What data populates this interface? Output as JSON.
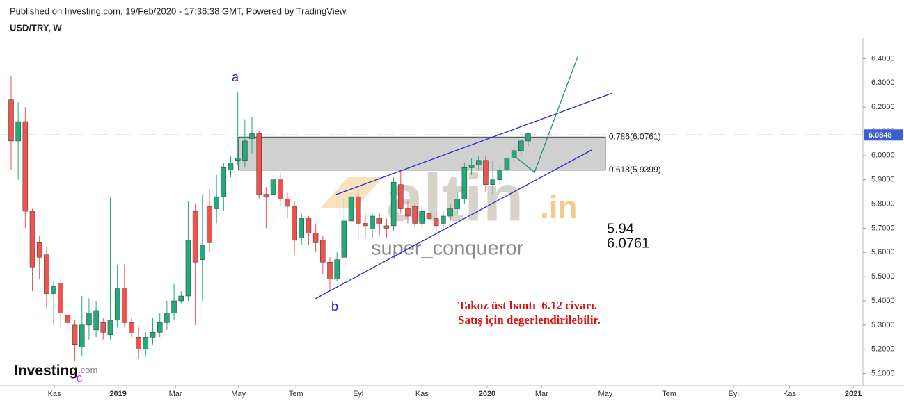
{
  "header": {
    "published": "Published on Investing.com, 19/Feb/2020 - 17:36:38 GMT, Powered by TradingView.",
    "symbol": "USD/TRY, W"
  },
  "chart_data": {
    "type": "candlestick",
    "categories": [
      null,
      null,
      null,
      null,
      null,
      null,
      null,
      null,
      null,
      null,
      null,
      null,
      null,
      null,
      null,
      null,
      null,
      null,
      null,
      null,
      null,
      null,
      null,
      null,
      null,
      null,
      null,
      null,
      null,
      null,
      null,
      null,
      null,
      null,
      null,
      null,
      null,
      null,
      null,
      null,
      null,
      null,
      null,
      null,
      null,
      null,
      null,
      null,
      null,
      null,
      null,
      null,
      null,
      null,
      null,
      null,
      null,
      null,
      null,
      null,
      null,
      null,
      null,
      null,
      null,
      null,
      null,
      null,
      null,
      null,
      null,
      null,
      null,
      null
    ],
    "open": [
      6.23,
      6.06,
      6.14,
      5.77,
      5.64,
      5.59,
      5.43,
      5.47,
      5.34,
      5.3,
      5.21,
      5.3,
      5.28,
      5.31,
      5.26,
      5.32,
      5.45,
      5.31,
      5.25,
      5.2,
      5.25,
      5.27,
      5.31,
      5.35,
      5.4,
      5.42,
      5.77,
      5.57,
      5.79,
      5.78,
      5.83,
      5.94,
      5.98,
      5.98,
      6.07,
      6.09,
      5.84,
      5.84,
      5.9,
      5.82,
      5.79,
      5.66,
      5.74,
      5.68,
      5.65,
      5.56,
      5.49,
      5.58,
      5.73,
      5.83,
      5.72,
      5.7,
      5.74,
      5.71,
      5.71,
      5.88,
      5.78,
      5.79,
      5.72,
      5.76,
      5.74,
      5.72,
      5.75,
      5.78,
      5.82,
      5.95,
      5.96,
      5.98,
      5.88,
      5.9,
      5.94,
      5.99,
      6.02,
      6.06
    ],
    "high": [
      6.33,
      6.22,
      6.2,
      5.78,
      5.67,
      5.62,
      5.48,
      5.49,
      5.36,
      5.32,
      5.42,
      5.41,
      5.4,
      5.33,
      5.83,
      5.55,
      5.55,
      5.33,
      5.29,
      5.27,
      5.33,
      5.35,
      5.4,
      5.47,
      5.44,
      5.81,
      5.8,
      5.84,
      5.86,
      5.92,
      5.97,
      6.0,
      6.26,
      6.15,
      6.16,
      6.1,
      5.87,
      5.93,
      5.93,
      5.85,
      5.81,
      5.76,
      5.75,
      5.72,
      5.67,
      5.58,
      5.6,
      5.82,
      5.85,
      5.86,
      5.76,
      5.76,
      5.76,
      5.74,
      5.91,
      5.94,
      5.81,
      5.8,
      5.79,
      5.79,
      5.77,
      5.77,
      5.8,
      5.85,
      5.97,
      5.99,
      6.0,
      6.0,
      5.98,
      5.96,
      6.01,
      6.05,
      6.08,
      6.09
    ],
    "low": [
      5.94,
      5.9,
      5.7,
      5.44,
      5.49,
      5.37,
      5.3,
      5.29,
      5.27,
      5.15,
      5.17,
      5.24,
      5.25,
      5.24,
      5.24,
      5.29,
      5.29,
      5.25,
      5.16,
      5.17,
      5.22,
      5.25,
      5.28,
      5.32,
      5.39,
      5.4,
      5.3,
      5.4,
      5.6,
      5.72,
      5.77,
      5.91,
      5.96,
      5.95,
      6.01,
      5.82,
      5.7,
      5.77,
      5.79,
      5.74,
      5.59,
      5.63,
      5.63,
      5.6,
      5.51,
      5.44,
      5.48,
      5.57,
      5.7,
      5.65,
      5.66,
      5.66,
      5.67,
      5.66,
      5.69,
      5.76,
      5.72,
      5.7,
      5.7,
      5.71,
      5.69,
      5.7,
      5.73,
      5.76,
      5.8,
      5.92,
      5.94,
      5.85,
      5.84,
      5.88,
      5.92,
      5.97,
      6.0,
      6.04
    ],
    "close": [
      6.06,
      6.14,
      5.77,
      5.54,
      5.58,
      5.43,
      5.46,
      5.35,
      5.31,
      5.22,
      5.3,
      5.35,
      5.36,
      5.27,
      5.32,
      5.45,
      5.31,
      5.27,
      5.2,
      5.25,
      5.27,
      5.31,
      5.35,
      5.4,
      5.42,
      5.65,
      5.56,
      5.63,
      5.64,
      5.83,
      5.95,
      5.97,
      5.99,
      6.06,
      6.09,
      5.84,
      5.83,
      5.9,
      5.82,
      5.79,
      5.65,
      5.74,
      5.68,
      5.64,
      5.56,
      5.49,
      5.57,
      5.73,
      5.83,
      5.72,
      5.71,
      5.75,
      5.72,
      5.7,
      5.89,
      5.78,
      5.75,
      5.72,
      5.77,
      5.74,
      5.71,
      5.75,
      5.78,
      5.82,
      5.95,
      5.96,
      5.98,
      5.88,
      5.9,
      5.94,
      5.99,
      6.02,
      6.06,
      6.09
    ],
    "up_color": "#22ab78",
    "down_color": "#ef5350",
    "xlim": [
      -1.57,
      120.26
    ],
    "xticks": [
      {
        "value": 6.1,
        "label": "Kas"
      },
      {
        "value": 15.1,
        "label": "2019"
      },
      {
        "value": 23.2,
        "label": "Mar"
      },
      {
        "value": 32.1,
        "label": "May"
      },
      {
        "value": 40.2,
        "label": "Tem"
      },
      {
        "value": 49,
        "label": "Eyl"
      },
      {
        "value": 58,
        "label": "Kas"
      },
      {
        "value": 67.2,
        "label": "2020"
      },
      {
        "value": 74.9,
        "label": "Mar"
      },
      {
        "value": 83.9,
        "label": "May"
      },
      {
        "value": 92.9,
        "label": "Tem"
      },
      {
        "value": 102,
        "label": "Eyl"
      },
      {
        "value": 109.9,
        "label": "Kas"
      },
      {
        "value": 118.9,
        "label": "2021"
      }
    ],
    "ylim": [
      5.05,
      6.47
    ],
    "yticks": [
      {
        "value": 5.1,
        "label": "5.1000"
      },
      {
        "value": 5.2,
        "label": "5.2000"
      },
      {
        "value": 5.3,
        "label": "5.3000"
      },
      {
        "value": 5.4,
        "label": "5.4000"
      },
      {
        "value": 5.5,
        "label": "5.5000"
      },
      {
        "value": 5.6,
        "label": "5.6000"
      },
      {
        "value": 5.7,
        "label": "5.7000"
      },
      {
        "value": 5.8,
        "label": "5.8000"
      },
      {
        "value": 5.9,
        "label": "5.9000"
      },
      {
        "value": 6.0,
        "label": "6.0000"
      },
      {
        "value": 6.1,
        "label": "6.1000"
      },
      {
        "value": 6.2,
        "label": "6.2000"
      },
      {
        "value": 6.3,
        "label": "6.3000"
      },
      {
        "value": 6.4,
        "label": "6.4000"
      }
    ],
    "grid": false,
    "last_price": 6.0848,
    "fib_zone": {
      "x": [
        32.1,
        83.9
      ],
      "levels": [
        {
          "value": 6.0761,
          "label": "0.786(6.0761)"
        },
        {
          "value": 5.9399,
          "label": "0.618(5.9399)"
        }
      ]
    },
    "annotations": [
      "a",
      "b",
      "c",
      "5.94",
      "6.0761",
      "Takoz üst bantı  6.12 civarı.",
      "Satış için degerlendirilebilir."
    ],
    "watermark": {
      "brand": "altin",
      "suffix": ".in",
      "author": "super_conqueror"
    }
  },
  "logo": {
    "name": "Investing",
    "suffix": ".com"
  }
}
